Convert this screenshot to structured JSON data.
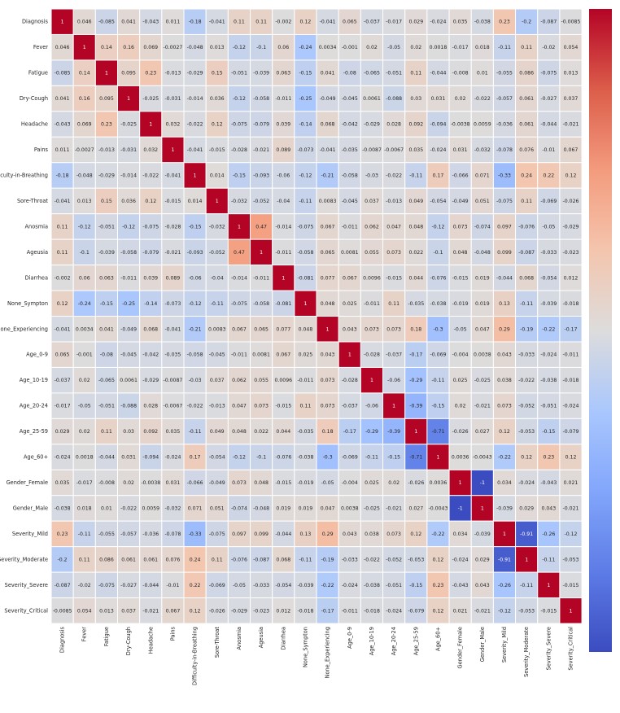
{
  "chart_data": {
    "type": "heatmap",
    "title": "",
    "xlabel": "",
    "ylabel": "",
    "labels": [
      "Diagnosis",
      "Fever",
      "Fatigue",
      "Dry-Cough",
      "Headache",
      "Pains",
      "Difficulty-in-Breathing",
      "Sore-Throat",
      "Anosmia",
      "Ageusia",
      "Diarrhea",
      "None_Sympton",
      "None_Experiencing",
      "Age_0-9",
      "Age_10-19",
      "Age_20-24",
      "Age_25-59",
      "Age_60+",
      "Gender_Female",
      "Gender_Male",
      "Severity_Mild",
      "Severity_Moderate",
      "Severity_Severe",
      "Severity_Critical"
    ],
    "matrix": [
      [
        "1",
        "0.046",
        "-0.085",
        "0.041",
        "-0.043",
        "0.011",
        "-0.18",
        "-0.041",
        "0.11",
        "0.11",
        "-0.002",
        "0.12",
        "-0.041",
        "0.065",
        "-0.037",
        "-0.017",
        "0.029",
        "-0.024",
        "0.035",
        "-0.038",
        "0.23",
        "-0.2",
        "-0.087",
        "-0.0085"
      ],
      [
        "0.046",
        "1",
        "0.14",
        "0.16",
        "0.069",
        "-0.0027",
        "-0.048",
        "0.013",
        "-0.12",
        "-0.1",
        "0.06",
        "-0.24",
        "0.0034",
        "-0.001",
        "0.02",
        "-0.05",
        "0.02",
        "0.0018",
        "-0.017",
        "0.018",
        "-0.11",
        "0.11",
        "-0.02",
        "0.054"
      ],
      [
        "-0.085",
        "0.14",
        "1",
        "0.095",
        "0.23",
        "-0.013",
        "-0.029",
        "0.15",
        "-0.051",
        "-0.039",
        "0.063",
        "-0.15",
        "0.041",
        "-0.08",
        "-0.065",
        "-0.051",
        "0.11",
        "-0.044",
        "-0.008",
        "0.01",
        "-0.055",
        "0.086",
        "-0.075",
        "0.013"
      ],
      [
        "0.041",
        "0.16",
        "0.095",
        "1",
        "-0.025",
        "-0.031",
        "-0.014",
        "0.036",
        "-0.12",
        "-0.058",
        "-0.011",
        "-0.25",
        "-0.049",
        "-0.045",
        "0.0061",
        "-0.088",
        "0.03",
        "0.031",
        "0.02",
        "-0.022",
        "-0.057",
        "0.061",
        "-0.027",
        "0.037"
      ],
      [
        "-0.043",
        "0.069",
        "0.23",
        "-0.025",
        "1",
        "0.032",
        "-0.022",
        "0.12",
        "-0.075",
        "-0.079",
        "0.039",
        "-0.14",
        "0.068",
        "-0.042",
        "-0.029",
        "0.028",
        "0.092",
        "-0.094",
        "-0.0038",
        "0.0059",
        "-0.036",
        "0.061",
        "-0.044",
        "-0.021"
      ],
      [
        "0.011",
        "-0.0027",
        "-0.013",
        "-0.031",
        "0.032",
        "1",
        "-0.041",
        "-0.015",
        "-0.028",
        "-0.021",
        "0.089",
        "-0.073",
        "-0.041",
        "-0.035",
        "-0.0087",
        "-0.0067",
        "0.035",
        "-0.024",
        "0.031",
        "-0.032",
        "-0.078",
        "0.076",
        "-0.01",
        "0.067"
      ],
      [
        "-0.18",
        "-0.048",
        "-0.029",
        "-0.014",
        "-0.022",
        "-0.041",
        "1",
        "0.014",
        "-0.15",
        "-0.093",
        "-0.06",
        "-0.12",
        "-0.21",
        "-0.058",
        "-0.03",
        "-0.022",
        "-0.11",
        "0.17",
        "-0.066",
        "0.071",
        "-0.33",
        "0.24",
        "0.22",
        "0.12"
      ],
      [
        "-0.041",
        "0.013",
        "0.15",
        "0.036",
        "0.12",
        "-0.015",
        "0.014",
        "1",
        "-0.032",
        "-0.052",
        "-0.04",
        "-0.11",
        "0.0083",
        "-0.045",
        "0.037",
        "-0.013",
        "0.049",
        "-0.054",
        "-0.049",
        "0.051",
        "-0.075",
        "0.11",
        "-0.069",
        "-0.026"
      ],
      [
        "0.11",
        "-0.12",
        "-0.051",
        "-0.12",
        "-0.075",
        "-0.028",
        "-0.15",
        "-0.032",
        "1",
        "0.47",
        "-0.014",
        "-0.075",
        "0.067",
        "-0.011",
        "0.062",
        "0.047",
        "0.048",
        "-0.12",
        "0.073",
        "-0.074",
        "0.097",
        "-0.076",
        "-0.05",
        "-0.029"
      ],
      [
        "0.11",
        "-0.1",
        "-0.039",
        "-0.058",
        "-0.079",
        "-0.021",
        "-0.093",
        "-0.052",
        "0.47",
        "1",
        "-0.011",
        "-0.058",
        "0.065",
        "0.0081",
        "0.055",
        "0.073",
        "0.022",
        "-0.1",
        "0.048",
        "-0.048",
        "0.099",
        "-0.087",
        "-0.033",
        "-0.023"
      ],
      [
        "-0.002",
        "0.06",
        "0.063",
        "-0.011",
        "0.039",
        "0.089",
        "-0.06",
        "-0.04",
        "-0.014",
        "-0.011",
        "1",
        "-0.081",
        "0.077",
        "0.067",
        "0.0096",
        "-0.015",
        "0.044",
        "-0.076",
        "-0.015",
        "0.019",
        "-0.044",
        "0.068",
        "-0.054",
        "0.012"
      ],
      [
        "0.12",
        "-0.24",
        "-0.15",
        "-0.25",
        "-0.14",
        "-0.073",
        "-0.12",
        "-0.11",
        "-0.075",
        "-0.058",
        "-0.081",
        "1",
        "0.048",
        "0.025",
        "-0.011",
        "0.11",
        "-0.035",
        "-0.038",
        "-0.019",
        "0.019",
        "0.13",
        "-0.11",
        "-0.039",
        "-0.018"
      ],
      [
        "-0.041",
        "0.0034",
        "0.041",
        "-0.049",
        "0.068",
        "-0.041",
        "-0.21",
        "0.0083",
        "0.067",
        "0.065",
        "0.077",
        "0.048",
        "1",
        "0.043",
        "0.073",
        "0.073",
        "0.18",
        "-0.3",
        "-0.05",
        "0.047",
        "0.29",
        "-0.19",
        "-0.22",
        "-0.17"
      ],
      [
        "0.065",
        "-0.001",
        "-0.08",
        "-0.045",
        "-0.042",
        "-0.035",
        "-0.058",
        "-0.045",
        "-0.011",
        "0.0081",
        "0.067",
        "0.025",
        "0.043",
        "1",
        "-0.028",
        "-0.037",
        "-0.17",
        "-0.069",
        "-0.004",
        "0.0038",
        "0.043",
        "-0.033",
        "-0.024",
        "-0.011"
      ],
      [
        "-0.037",
        "0.02",
        "-0.065",
        "0.0061",
        "-0.029",
        "-0.0087",
        "-0.03",
        "0.037",
        "0.062",
        "0.055",
        "0.0096",
        "-0.011",
        "0.073",
        "-0.028",
        "1",
        "-0.06",
        "-0.29",
        "-0.11",
        "0.025",
        "-0.025",
        "0.038",
        "-0.022",
        "-0.038",
        "-0.018"
      ],
      [
        "-0.017",
        "-0.05",
        "-0.051",
        "-0.088",
        "0.028",
        "-0.0067",
        "-0.022",
        "-0.013",
        "0.047",
        "0.073",
        "-0.015",
        "0.11",
        "0.073",
        "-0.037",
        "-0.06",
        "1",
        "-0.39",
        "-0.15",
        "0.02",
        "-0.021",
        "0.073",
        "-0.052",
        "-0.051",
        "-0.024"
      ],
      [
        "0.029",
        "0.02",
        "0.11",
        "0.03",
        "0.092",
        "0.035",
        "-0.11",
        "0.049",
        "0.048",
        "0.022",
        "0.044",
        "-0.035",
        "0.18",
        "-0.17",
        "-0.29",
        "-0.39",
        "1",
        "-0.71",
        "-0.026",
        "0.027",
        "0.12",
        "-0.053",
        "-0.15",
        "-0.079"
      ],
      [
        "-0.024",
        "0.0018",
        "-0.044",
        "0.031",
        "-0.094",
        "-0.024",
        "0.17",
        "-0.054",
        "-0.12",
        "-0.1",
        "-0.076",
        "-0.038",
        "-0.3",
        "-0.069",
        "-0.11",
        "-0.15",
        "-0.71",
        "1",
        "0.0036",
        "-0.0043",
        "-0.22",
        "0.12",
        "0.23",
        "0.12"
      ],
      [
        "0.035",
        "-0.017",
        "-0.008",
        "0.02",
        "-0.0038",
        "0.031",
        "-0.066",
        "-0.049",
        "0.073",
        "0.048",
        "-0.015",
        "-0.019",
        "-0.05",
        "-0.004",
        "0.025",
        "0.02",
        "-0.026",
        "0.0036",
        "1",
        "-1",
        "0.034",
        "-0.024",
        "-0.043",
        "0.021"
      ],
      [
        "-0.038",
        "0.018",
        "0.01",
        "-0.022",
        "0.0059",
        "-0.032",
        "0.071",
        "0.051",
        "-0.074",
        "-0.048",
        "0.019",
        "0.019",
        "0.047",
        "0.0038",
        "-0.025",
        "-0.021",
        "0.027",
        "-0.0043",
        "-1",
        "1",
        "-0.039",
        "0.029",
        "0.043",
        "-0.021"
      ],
      [
        "0.23",
        "-0.11",
        "-0.055",
        "-0.057",
        "-0.036",
        "-0.078",
        "-0.33",
        "-0.075",
        "0.097",
        "0.099",
        "-0.044",
        "0.13",
        "0.29",
        "0.043",
        "0.038",
        "0.073",
        "0.12",
        "-0.22",
        "0.034",
        "-0.039",
        "1",
        "-0.91",
        "-0.26",
        "-0.12"
      ],
      [
        "-0.2",
        "0.11",
        "0.086",
        "0.061",
        "0.061",
        "0.076",
        "0.24",
        "0.11",
        "-0.076",
        "-0.087",
        "0.068",
        "-0.11",
        "-0.19",
        "-0.033",
        "-0.022",
        "-0.052",
        "-0.053",
        "0.12",
        "-0.024",
        "0.029",
        "-0.91",
        "1",
        "-0.11",
        "-0.053"
      ],
      [
        "-0.087",
        "-0.02",
        "-0.075",
        "-0.027",
        "-0.044",
        "-0.01",
        "0.22",
        "-0.069",
        "-0.05",
        "-0.033",
        "-0.054",
        "-0.039",
        "-0.22",
        "-0.024",
        "-0.038",
        "-0.051",
        "-0.15",
        "0.23",
        "-0.043",
        "0.043",
        "-0.26",
        "-0.11",
        "1",
        "-0.015"
      ],
      [
        "-0.0085",
        "0.054",
        "0.013",
        "0.037",
        "-0.021",
        "0.067",
        "0.12",
        "-0.026",
        "-0.029",
        "-0.023",
        "0.012",
        "-0.018",
        "-0.17",
        "-0.011",
        "-0.018",
        "-0.024",
        "-0.079",
        "0.12",
        "0.021",
        "-0.021",
        "-0.12",
        "-0.053",
        "-0.015",
        "1"
      ]
    ],
    "colorbar": {
      "vmin": -1,
      "vmax": 1,
      "colormap": "coolwarm",
      "ticks": []
    },
    "colors": {
      "low": "#3b4cc0",
      "mid": "#dddcdc",
      "high": "#b40426",
      "gridline": "#ffffff"
    }
  }
}
